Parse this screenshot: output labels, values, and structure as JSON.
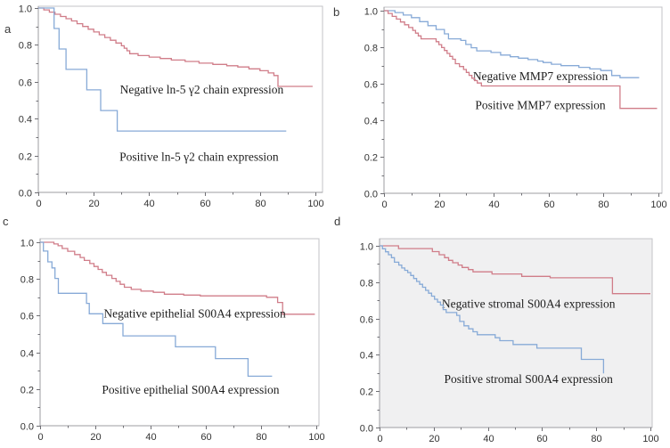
{
  "figure": {
    "background": "#ffffff",
    "colors": {
      "red_curve": "#d07d89",
      "blue_curve": "#87aad7",
      "plot_border": "#c3c3c7",
      "axis_line": "#9d9da2",
      "tick": "#6f6f74",
      "tick_label": "#333333",
      "annotation_text": "#1d1d1d",
      "panel_d_plot_bg": "#f0f0f1",
      "plot_bg": "#ffffff"
    }
  },
  "chart_data": [
    {
      "id": "a",
      "panel_label": "a",
      "type": "line",
      "subtype": "kaplan-meier-step",
      "title": "",
      "xlabel": "",
      "ylabel": "",
      "x_range": [
        0,
        100
      ],
      "y_range": [
        0,
        1
      ],
      "x_tick_labels": [
        "0",
        "20",
        "40",
        "60",
        "80",
        "100"
      ],
      "y_tick_labels": [
        "0.0",
        "0.2",
        "0.4",
        "0.6",
        "0.8",
        "1.0"
      ],
      "x_minor_ticks": [
        10,
        30,
        50,
        70,
        90
      ],
      "y_minor_ticks": [
        0.1,
        0.3,
        0.5,
        0.7,
        0.9
      ],
      "grid": false,
      "legend": "inline-annotations",
      "series": [
        {
          "name": "negative-expression",
          "label": "Negative ln-5 γ2 chain expression",
          "color": "red",
          "annotation_x": 59,
          "annotation_y": 0.555,
          "points": [
            [
              0,
              1.0
            ],
            [
              2,
              0.99
            ],
            [
              4,
              0.978
            ],
            [
              6,
              0.966
            ],
            [
              8,
              0.954
            ],
            [
              10,
              0.942
            ],
            [
              12,
              0.93
            ],
            [
              14,
              0.915
            ],
            [
              16,
              0.9
            ],
            [
              18,
              0.885
            ],
            [
              20,
              0.87
            ],
            [
              22,
              0.855
            ],
            [
              24,
              0.84
            ],
            [
              26,
              0.825
            ],
            [
              28,
              0.81
            ],
            [
              30,
              0.795
            ],
            [
              31,
              0.782
            ],
            [
              32,
              0.768
            ],
            [
              33,
              0.752
            ],
            [
              36,
              0.742
            ],
            [
              40,
              0.734
            ],
            [
              44,
              0.726
            ],
            [
              48,
              0.718
            ],
            [
              53,
              0.71
            ],
            [
              58,
              0.701
            ],
            [
              63,
              0.694
            ],
            [
              68,
              0.687
            ],
            [
              72,
              0.68
            ],
            [
              76,
              0.67
            ],
            [
              80,
              0.66
            ],
            [
              83,
              0.648
            ],
            [
              85,
              0.634
            ],
            [
              86.5,
              0.575
            ],
            [
              99,
              0.575
            ]
          ]
        },
        {
          "name": "positive-expression",
          "label": "Positive ln-5 γ2 chain expression",
          "color": "blue",
          "annotation_x": 58,
          "annotation_y": 0.19,
          "points": [
            [
              0,
              1.0
            ],
            [
              5.7,
              0.889
            ],
            [
              7.5,
              0.778
            ],
            [
              10,
              0.667
            ],
            [
              17.5,
              0.556
            ],
            [
              22.5,
              0.444
            ],
            [
              28.5,
              0.333
            ],
            [
              89.5,
              0.333
            ]
          ]
        }
      ]
    },
    {
      "id": "b",
      "panel_label": "b",
      "type": "line",
      "subtype": "kaplan-meier-step",
      "title": "",
      "xlabel": "",
      "ylabel": "",
      "x_range": [
        0,
        100
      ],
      "y_range": [
        0,
        1
      ],
      "x_tick_labels": [
        "0",
        "20",
        "40",
        "60",
        "80",
        "100"
      ],
      "y_tick_labels": [
        "0.0",
        "0.2",
        "0.4",
        "0.6",
        "0.8",
        "1.0"
      ],
      "x_minor_ticks": [
        10,
        30,
        50,
        70,
        90
      ],
      "y_minor_ticks": [
        0.1,
        0.3,
        0.5,
        0.7,
        0.9
      ],
      "grid": false,
      "legend": "inline-annotations",
      "series": [
        {
          "name": "negative-expression",
          "label": "Negative MMP7 expression",
          "color": "blue",
          "annotation_x": 57,
          "annotation_y": 0.638,
          "points": [
            [
              0,
              1.0
            ],
            [
              4,
              0.99
            ],
            [
              7,
              0.976
            ],
            [
              10,
              0.962
            ],
            [
              13,
              0.94
            ],
            [
              16,
              0.918
            ],
            [
              19,
              0.897
            ],
            [
              22,
              0.873
            ],
            [
              23.5,
              0.846
            ],
            [
              28,
              0.837
            ],
            [
              29.8,
              0.815
            ],
            [
              31.8,
              0.797
            ],
            [
              33.8,
              0.78
            ],
            [
              39,
              0.771
            ],
            [
              42.5,
              0.757
            ],
            [
              46,
              0.748
            ],
            [
              49,
              0.74
            ],
            [
              52.5,
              0.732
            ],
            [
              56,
              0.724
            ],
            [
              58,
              0.716
            ],
            [
              61,
              0.707
            ],
            [
              64.5,
              0.699
            ],
            [
              71,
              0.69
            ],
            [
              75,
              0.681
            ],
            [
              79,
              0.672
            ],
            [
              83,
              0.645
            ],
            [
              86,
              0.633
            ],
            [
              93,
              0.633
            ]
          ]
        },
        {
          "name": "positive-expression",
          "label": "Positive MMP7 expression",
          "color": "red",
          "annotation_x": 57,
          "annotation_y": 0.48,
          "points": [
            [
              0,
              1.0
            ],
            [
              1.5,
              0.985
            ],
            [
              3,
              0.969
            ],
            [
              4.5,
              0.954
            ],
            [
              6,
              0.938
            ],
            [
              7.5,
              0.923
            ],
            [
              9,
              0.908
            ],
            [
              10.5,
              0.892
            ],
            [
              11.5,
              0.877
            ],
            [
              12.5,
              0.862
            ],
            [
              13.5,
              0.846
            ],
            [
              19,
              0.83
            ],
            [
              20,
              0.814
            ],
            [
              21,
              0.798
            ],
            [
              22,
              0.782
            ],
            [
              23,
              0.766
            ],
            [
              24,
              0.75
            ],
            [
              25,
              0.734
            ],
            [
              26,
              0.71
            ],
            [
              27.5,
              0.694
            ],
            [
              29,
              0.678
            ],
            [
              30,
              0.662
            ],
            [
              31,
              0.646
            ],
            [
              32,
              0.63
            ],
            [
              33,
              0.617
            ],
            [
              34,
              0.604
            ],
            [
              35.5,
              0.588
            ],
            [
              86,
              0.465
            ],
            [
              99.5,
              0.465
            ]
          ]
        }
      ]
    },
    {
      "id": "c",
      "panel_label": "c",
      "type": "line",
      "subtype": "kaplan-meier-step",
      "title": "",
      "xlabel": "",
      "ylabel": "",
      "x_range": [
        0,
        100
      ],
      "y_range": [
        0,
        1
      ],
      "x_tick_labels": [
        "0",
        "20",
        "40",
        "60",
        "80",
        "100"
      ],
      "y_tick_labels": [
        "0.0",
        "0.2",
        "0.4",
        "0.6",
        "0.8",
        "1.0"
      ],
      "x_minor_ticks": [
        10,
        30,
        50,
        70,
        90
      ],
      "y_minor_ticks": [
        0.1,
        0.3,
        0.5,
        0.7,
        0.9
      ],
      "grid": false,
      "legend": "inline-annotations",
      "series": [
        {
          "name": "negative-expression",
          "label": "Negative epithelial S00A4 expression",
          "color": "red",
          "annotation_x": 56,
          "annotation_y": 0.61,
          "points": [
            [
              0,
              1.0
            ],
            [
              5,
              0.991
            ],
            [
              6.5,
              0.981
            ],
            [
              8,
              0.966
            ],
            [
              10,
              0.951
            ],
            [
              12.5,
              0.933
            ],
            [
              14.5,
              0.917
            ],
            [
              16,
              0.901
            ],
            [
              18,
              0.884
            ],
            [
              19.5,
              0.868
            ],
            [
              21,
              0.852
            ],
            [
              22.5,
              0.836
            ],
            [
              24,
              0.82
            ],
            [
              26,
              0.803
            ],
            [
              27.5,
              0.787
            ],
            [
              29,
              0.771
            ],
            [
              30.5,
              0.755
            ],
            [
              33,
              0.743
            ],
            [
              36.5,
              0.734
            ],
            [
              41,
              0.727
            ],
            [
              45,
              0.717
            ],
            [
              52,
              0.712
            ],
            [
              58,
              0.708
            ],
            [
              82,
              0.7
            ],
            [
              86,
              0.672
            ],
            [
              87.8,
              0.608
            ],
            [
              99.5,
              0.608
            ]
          ]
        },
        {
          "name": "positive-expression",
          "label": "Positive epithelial S00A4 expression",
          "color": "blue",
          "annotation_x": 54.5,
          "annotation_y": 0.195,
          "points": [
            [
              0,
              1.0
            ],
            [
              1.2,
              0.952
            ],
            [
              2.8,
              0.893
            ],
            [
              4.3,
              0.86
            ],
            [
              5.4,
              0.803
            ],
            [
              6.6,
              0.722
            ],
            [
              16.8,
              0.667
            ],
            [
              17.8,
              0.61
            ],
            [
              22.7,
              0.557
            ],
            [
              30,
              0.49
            ],
            [
              49,
              0.43
            ],
            [
              63.5,
              0.366
            ],
            [
              75.3,
              0.27
            ],
            [
              84,
              0.27
            ]
          ]
        }
      ]
    },
    {
      "id": "d",
      "panel_label": "d",
      "type": "line",
      "subtype": "kaplan-meier-step",
      "title": "",
      "xlabel": "",
      "ylabel": "",
      "x_range": [
        0,
        100
      ],
      "y_range": [
        0,
        1
      ],
      "x_tick_labels": [
        "0",
        "20",
        "40",
        "60",
        "80",
        "100"
      ],
      "y_tick_labels": [
        "0.0",
        "0.2",
        "0.4",
        "0.6",
        "0.8",
        "1.0"
      ],
      "x_minor_ticks": [
        10,
        30,
        50,
        70,
        90
      ],
      "y_minor_ticks": [
        0.1,
        0.3,
        0.5,
        0.7,
        0.9
      ],
      "grid": false,
      "legend": "inline-annotations",
      "series": [
        {
          "name": "negative-expression",
          "label": "Negative stromal S00A4 expression",
          "color": "red",
          "annotation_x": 55,
          "annotation_y": 0.68,
          "points": [
            [
              0,
              1.0
            ],
            [
              7,
              0.985
            ],
            [
              19.5,
              0.968
            ],
            [
              22,
              0.951
            ],
            [
              24,
              0.935
            ],
            [
              25.5,
              0.92
            ],
            [
              27,
              0.907
            ],
            [
              29,
              0.894
            ],
            [
              30.5,
              0.881
            ],
            [
              32.8,
              0.869
            ],
            [
              34.5,
              0.857
            ],
            [
              41.5,
              0.845
            ],
            [
              52.5,
              0.832
            ],
            [
              63,
              0.824
            ],
            [
              86,
              0.737
            ],
            [
              100,
              0.737
            ]
          ]
        },
        {
          "name": "positive-expression",
          "label": "Positive stromal S00A4 expression",
          "color": "blue",
          "annotation_x": 55,
          "annotation_y": 0.265,
          "points": [
            [
              0,
              1.0
            ],
            [
              1.1,
              0.984
            ],
            [
              2.2,
              0.967
            ],
            [
              3.3,
              0.951
            ],
            [
              4.4,
              0.935
            ],
            [
              5.5,
              0.91
            ],
            [
              7.1,
              0.894
            ],
            [
              8.2,
              0.878
            ],
            [
              9.3,
              0.865
            ],
            [
              10.4,
              0.853
            ],
            [
              11.5,
              0.837
            ],
            [
              12.6,
              0.82
            ],
            [
              13.7,
              0.804
            ],
            [
              14.8,
              0.788
            ],
            [
              15.9,
              0.772
            ],
            [
              17,
              0.755
            ],
            [
              18.1,
              0.739
            ],
            [
              19.2,
              0.723
            ],
            [
              20.3,
              0.706
            ],
            [
              21.4,
              0.69
            ],
            [
              22.5,
              0.674
            ],
            [
              23.5,
              0.649
            ],
            [
              24.6,
              0.633
            ],
            [
              28.5,
              0.617
            ],
            [
              29.6,
              0.584
            ],
            [
              31.2,
              0.56
            ],
            [
              32.9,
              0.543
            ],
            [
              34.5,
              0.527
            ],
            [
              36.1,
              0.511
            ],
            [
              42.7,
              0.494
            ],
            [
              44.4,
              0.478
            ],
            [
              49.3,
              0.457
            ],
            [
              58.1,
              0.437
            ],
            [
              74.5,
              0.375
            ],
            [
              82.7,
              0.298
            ]
          ]
        }
      ]
    }
  ]
}
